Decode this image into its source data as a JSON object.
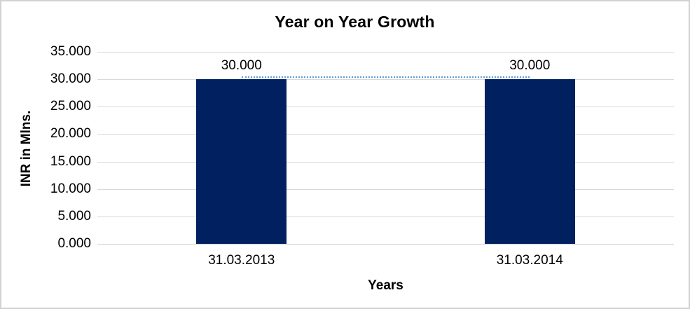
{
  "chart_data": {
    "type": "bar",
    "title": "Year on Year Growth",
    "xlabel": "Years",
    "ylabel": "INR in Mlns.",
    "categories": [
      "31.03.2013",
      "31.03.2014"
    ],
    "values": [
      30,
      30
    ],
    "data_labels": [
      "30.000",
      "30.000"
    ],
    "y_ticks": [
      "35.000",
      "30.000",
      "25.000",
      "20.000",
      "15.000",
      "10.000",
      "5.000",
      "0.000"
    ],
    "ylim": [
      0,
      35
    ],
    "grid": true,
    "legend": "none",
    "bar_color": "#002060",
    "trendline_color": "#5b9bd5",
    "trendline_style": "dotted",
    "gridline_color": "#d9d9d9",
    "axis_line_color": "#cfcfcf",
    "text_color": "#000000"
  }
}
